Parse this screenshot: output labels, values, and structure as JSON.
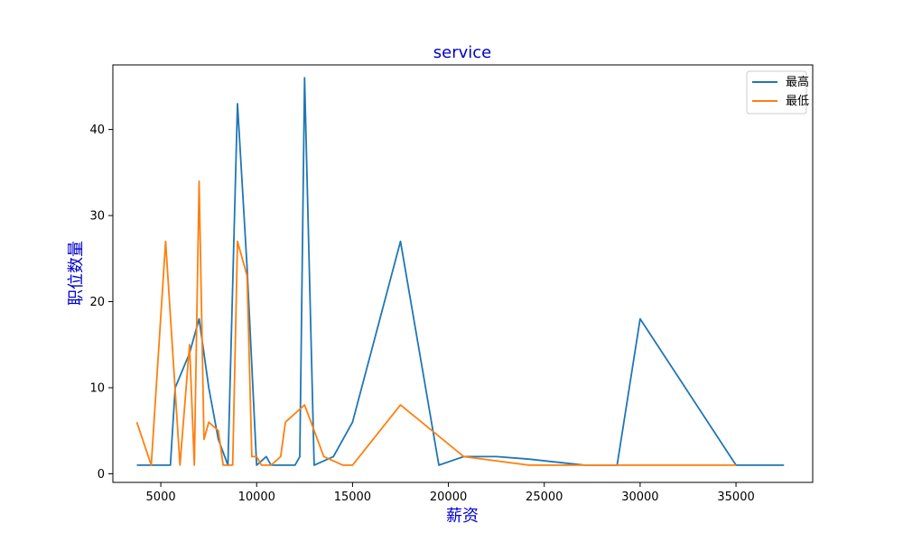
{
  "chart_data": {
    "type": "line",
    "title": "service",
    "xlabel": "薪资",
    "ylabel": "职位数量",
    "title_color": "#0000cc",
    "label_color": "#0000cc",
    "xlim": [
      2500,
      39000
    ],
    "ylim": [
      -1,
      47.5
    ],
    "xticks": [
      5000,
      10000,
      15000,
      20000,
      25000,
      30000,
      35000
    ],
    "yticks": [
      0,
      10,
      20,
      30,
      40
    ],
    "grid": false,
    "legend_position": "top-right",
    "series": [
      {
        "name": "最高",
        "color": "#1f77b4",
        "x": [
          3750,
          4500,
          5000,
          5500,
          5750,
          6500,
          7000,
          7500,
          8000,
          8500,
          9000,
          9500,
          10000,
          10500,
          10750,
          11500,
          12000,
          12250,
          12500,
          13000,
          14000,
          15000,
          17500,
          19500,
          20800,
          22500,
          24200,
          27100,
          28800,
          30000,
          35000,
          37500
        ],
        "y": [
          1,
          1,
          1,
          1,
          10,
          14,
          18,
          10,
          4,
          1,
          43,
          24,
          1,
          2,
          1,
          1,
          1,
          2,
          46,
          1,
          2,
          6,
          27,
          1,
          2,
          2,
          1.7,
          1,
          1,
          18,
          1,
          1
        ]
      },
      {
        "name": "最低",
        "color": "#ff7f0e",
        "x": [
          3750,
          4500,
          5250,
          6000,
          6500,
          6750,
          7000,
          7250,
          7500,
          8000,
          8250,
          8750,
          9000,
          9500,
          9750,
          10000,
          10250,
          10750,
          11250,
          11500,
          12500,
          13500,
          14500,
          15000,
          17500,
          20800,
          24200,
          27100,
          30000,
          35000
        ],
        "y": [
          6,
          1,
          27,
          1,
          15,
          1,
          34,
          4,
          6,
          5,
          1,
          1,
          27,
          23,
          2,
          2,
          1,
          1,
          2,
          6,
          8,
          2,
          1,
          1,
          8,
          2,
          1,
          1,
          1,
          1
        ]
      }
    ]
  }
}
